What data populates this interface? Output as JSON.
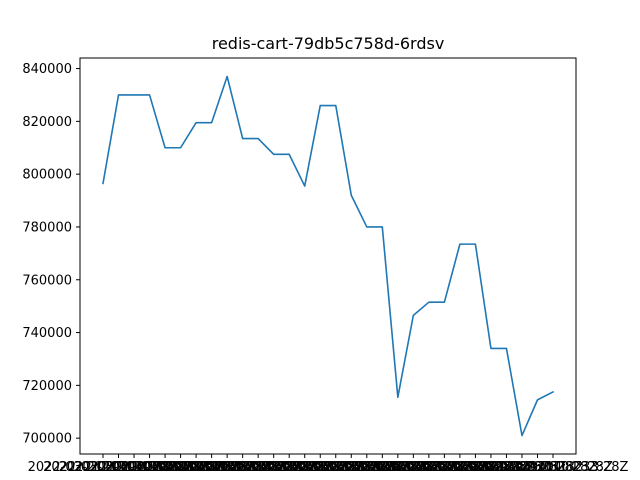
{
  "chart_data": {
    "type": "line",
    "title": "redis-cart-79db5c758d-6rdsv",
    "xlabel": "",
    "ylabel": "",
    "ylim": [
      694000,
      844000
    ],
    "yticks": [
      700000,
      720000,
      740000,
      760000,
      780000,
      800000,
      820000,
      840000
    ],
    "ytick_labels": [
      "700000",
      "720000",
      "740000",
      "760000",
      "780000",
      "800000",
      "820000",
      "840000"
    ],
    "x": [
      "2022-03-21T04:04:28Z",
      "2022-03-21T04:05:28Z",
      "2022-03-21T04:06:28Z",
      "2022-03-21T04:07:28Z",
      "2022-03-21T04:08:28Z",
      "2022-03-21T04:09:28Z",
      "2022-03-21T04:10:28Z",
      "2022-03-21T04:11:28Z",
      "2022-03-21T04:12:28Z",
      "2022-03-21T04:13:28Z",
      "2022-03-21T04:14:28Z",
      "2022-03-21T04:15:28Z",
      "2022-03-21T04:16:28Z",
      "2022-03-21T04:17:28Z",
      "2022-03-21T04:18:28Z",
      "2022-03-21T04:19:28Z",
      "2022-03-21T04:20:28Z",
      "2022-03-21T04:21:28Z",
      "2022-03-21T04:22:28Z",
      "2022-03-21T04:23:28Z",
      "2022-03-21T04:24:28Z",
      "2022-03-21T04:25:28Z",
      "2022-03-21T04:26:28Z",
      "2022-03-21T04:27:28Z",
      "2022-03-21T04:28:28Z",
      "2022-03-21T04:29:28Z",
      "2022-03-21T04:30:28Z",
      "2022-03-21T04:31:28Z",
      "2022-03-21T04:32:28Z",
      "2022-03-21T04:33:28Z"
    ],
    "series": [
      {
        "values": [
          796500,
          830000,
          830000,
          830000,
          810000,
          810000,
          819500,
          819500,
          837000,
          813500,
          813500,
          807500,
          807500,
          795500,
          826000,
          826000,
          792000,
          780000,
          780000,
          715500,
          746500,
          751500,
          751500,
          773500,
          773500,
          734000,
          734000,
          701000,
          714500,
          717500
        ],
        "color": "#1f77b4"
      }
    ]
  }
}
